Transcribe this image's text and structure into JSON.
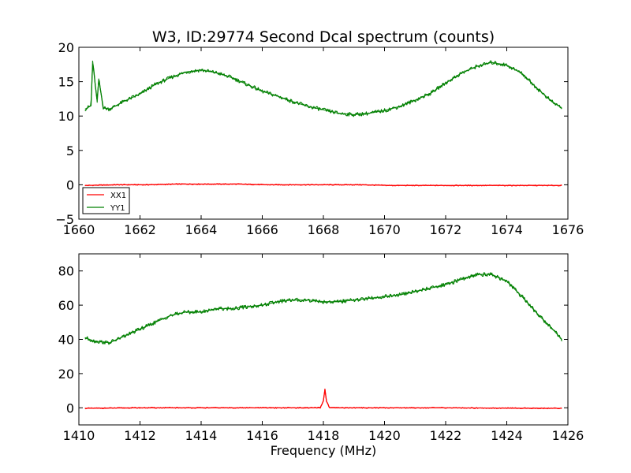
{
  "chart_data": [
    {
      "type": "line",
      "title": "W3, ID:29774 Second Dcal spectrum (counts)",
      "xlabel": "",
      "ylabel": "",
      "xlim": [
        1660,
        1676
      ],
      "ylim": [
        -5,
        20
      ],
      "xticks": [
        1660,
        1662,
        1664,
        1666,
        1668,
        1670,
        1672,
        1674,
        1676
      ],
      "xtick_labels": [
        "1660",
        "1662",
        "1664",
        "1666",
        "1668",
        "1670",
        "1672",
        "1674",
        "1676"
      ],
      "yticks": [
        -5,
        0,
        5,
        10,
        15,
        20
      ],
      "ytick_labels": [
        "−5",
        "0",
        "5",
        "10",
        "15",
        "20"
      ],
      "grid": false,
      "legend": {
        "placement": "lower-left",
        "entries": [
          "XX1",
          "YY1"
        ]
      },
      "series": [
        {
          "name": "XX1",
          "color": "#ff0000",
          "x": [
            1660.2,
            1661.2,
            1662.2,
            1663.2,
            1664.2,
            1665.2,
            1666.2,
            1667.2,
            1668.2,
            1669.2,
            1670.2,
            1671.2,
            1672.2,
            1673.2,
            1674.2,
            1675.2,
            1675.8
          ],
          "y": [
            -0.1,
            0.0,
            0.0,
            0.1,
            0.1,
            0.1,
            0.0,
            0.0,
            0.0,
            0.0,
            -0.1,
            -0.1,
            -0.1,
            -0.1,
            -0.1,
            -0.1,
            -0.1
          ]
        },
        {
          "name": "YY1",
          "color": "#008000",
          "x": [
            1660.2,
            1660.4,
            1660.45,
            1660.6,
            1660.65,
            1660.8,
            1661.0,
            1661.5,
            1662.0,
            1662.5,
            1663.0,
            1663.5,
            1664.0,
            1664.5,
            1665.0,
            1665.5,
            1666.0,
            1666.5,
            1667.0,
            1667.5,
            1668.0,
            1668.5,
            1669.0,
            1669.5,
            1670.0,
            1670.5,
            1671.0,
            1671.5,
            1672.0,
            1672.5,
            1673.0,
            1673.5,
            1674.0,
            1674.5,
            1675.0,
            1675.5,
            1675.8
          ],
          "y": [
            11.0,
            11.5,
            18.0,
            12.0,
            15.4,
            11.2,
            11.0,
            12.2,
            13.2,
            14.6,
            15.6,
            16.4,
            16.7,
            16.3,
            15.6,
            14.6,
            13.6,
            12.9,
            12.1,
            11.4,
            10.9,
            10.4,
            10.2,
            10.4,
            10.8,
            11.4,
            12.3,
            13.3,
            14.8,
            16.2,
            17.2,
            17.8,
            17.4,
            16.2,
            14.0,
            12.0,
            11.2
          ]
        }
      ]
    },
    {
      "type": "line",
      "title": "",
      "xlabel": "Frequency (MHz)",
      "ylabel": "",
      "xlim": [
        1410,
        1426
      ],
      "ylim": [
        -10,
        90
      ],
      "xticks": [
        1410,
        1412,
        1414,
        1416,
        1418,
        1420,
        1422,
        1424,
        1426
      ],
      "xtick_labels": [
        "1410",
        "1412",
        "1414",
        "1416",
        "1418",
        "1420",
        "1422",
        "1424",
        "1426"
      ],
      "yticks": [
        0,
        20,
        40,
        60,
        80
      ],
      "ytick_labels": [
        "0",
        "20",
        "40",
        "60",
        "80"
      ],
      "grid": false,
      "series": [
        {
          "color": "#ff0000",
          "x": [
            1410.2,
            1412.0,
            1414.0,
            1416.0,
            1417.9,
            1418.0,
            1418.05,
            1418.1,
            1418.2,
            1420.0,
            1422.0,
            1424.0,
            1425.8
          ],
          "y": [
            -0.3,
            0.0,
            0.0,
            0.0,
            0.0,
            4.0,
            11.0,
            4.0,
            0.0,
            0.0,
            0.0,
            -0.2,
            -0.3
          ]
        },
        {
          "color": "#008000",
          "x": [
            1410.2,
            1410.5,
            1411.0,
            1411.5,
            1412.0,
            1412.5,
            1413.0,
            1413.5,
            1414.0,
            1414.5,
            1415.0,
            1415.5,
            1416.0,
            1416.5,
            1417.0,
            1417.5,
            1418.0,
            1418.5,
            1419.0,
            1419.5,
            1420.0,
            1420.5,
            1421.0,
            1421.5,
            1422.0,
            1422.5,
            1423.0,
            1423.5,
            1424.0,
            1424.5,
            1425.0,
            1425.5,
            1425.8
          ],
          "y": [
            41,
            39,
            38,
            42,
            46,
            50,
            54,
            56,
            56,
            58,
            58,
            59,
            60,
            62,
            63,
            63,
            62,
            62,
            63,
            64,
            65,
            66,
            68,
            70,
            72,
            75,
            78,
            78,
            74,
            65,
            55,
            46,
            40
          ]
        }
      ]
    }
  ]
}
